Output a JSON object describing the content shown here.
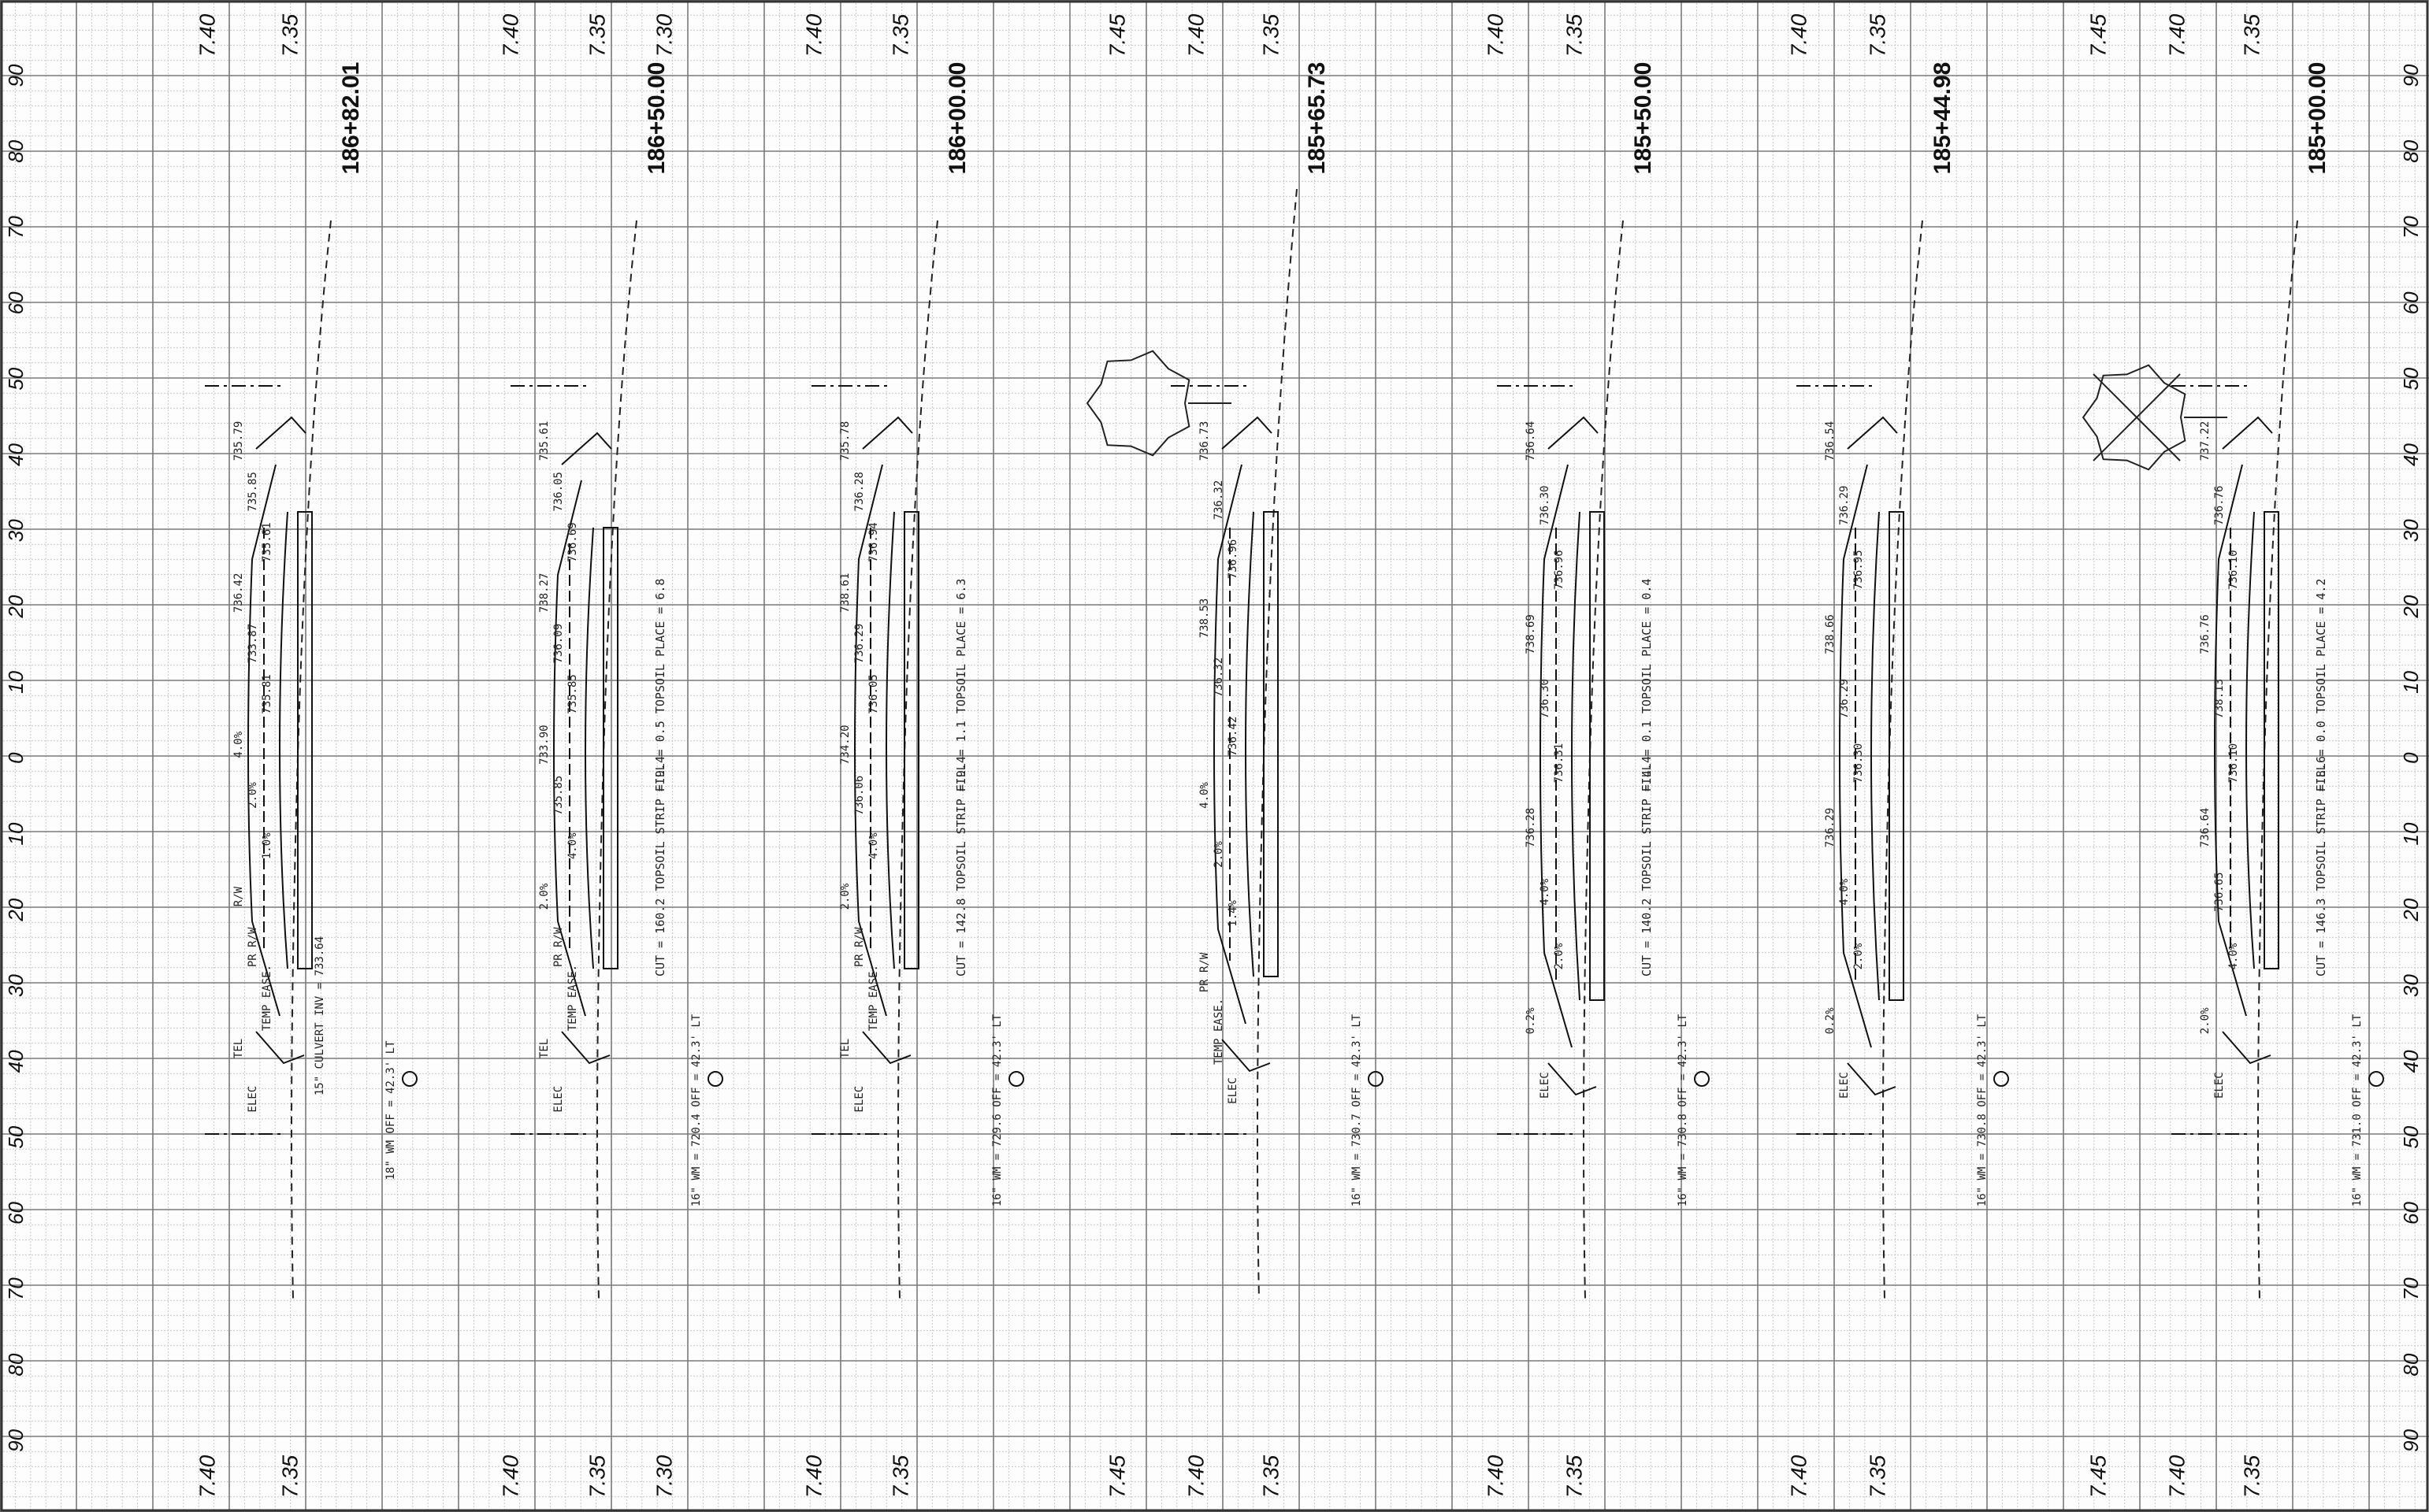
{
  "sheet": {
    "offset_labels": [
      "90",
      "80",
      "70",
      "60",
      "50",
      "40",
      "30",
      "20",
      "10",
      "0",
      "10",
      "20",
      "30",
      "40",
      "50",
      "60",
      "70",
      "80",
      "90"
    ],
    "colors": {
      "paper": "#fdfdfd",
      "grid_minor": "#c8c8c8",
      "grid_major": "#7a7a7a",
      "ink": "#111111"
    }
  },
  "sections": [
    {
      "station": "186+82.01",
      "elev_top": [
        "7.40",
        "7.35"
      ],
      "elev_bottom": [
        "7.40",
        "7.35"
      ],
      "notes": {
        "fill": "",
        "cut": ""
      },
      "callouts": [
        "735.79",
        "735.85",
        "735.61",
        "736.42",
        "733.87",
        "735.81",
        "4.0%",
        "2.0%",
        "1.0%",
        "R/W",
        "PR R/W",
        "TEMP EASE.",
        "TEL",
        "ELEC"
      ],
      "structure_note": "15\" CULVERT INV = 733.64",
      "drain_note": "18\" WM OFF = 42.3' LT"
    },
    {
      "station": "186+50.00",
      "elev_top": [
        "7.40",
        "7.35",
        "7.30"
      ],
      "elev_bottom": [
        "7.40",
        "7.35",
        "7.30"
      ],
      "notes": {
        "fill": "FILL = 0.5   TOPSOIL PLACE = 6.8",
        "cut": "CUT = 160.2   TOPSOIL STRIP = 9.4"
      },
      "callouts": [
        "735.61",
        "736.05",
        "736.69",
        "738.27",
        "736.09",
        "735.85",
        "733.90",
        "735.85",
        "4.0%",
        "2.0%",
        "PR R/W",
        "TEMP EASE.",
        "TEL",
        "ELEC"
      ],
      "structure_note": "",
      "drain_note": "16\" WM = 720.4 OFF = 42.3' LT"
    },
    {
      "station": "186+00.00",
      "elev_top": [
        "7.40",
        "7.35"
      ],
      "elev_bottom": [
        "7.40",
        "7.35"
      ],
      "notes": {
        "fill": "FILL = 1.1   TOPSOIL PLACE = 6.3",
        "cut": "CUT = 142.8   TOPSOIL STRIP = 9.4"
      },
      "callouts": [
        "735.78",
        "736.28",
        "736.94",
        "738.61",
        "736.29",
        "736.05",
        "734.20",
        "736.06",
        "4.0%",
        "2.0%",
        "PR R/W",
        "TEMP EASE.",
        "TEL",
        "ELEC"
      ],
      "structure_note": "",
      "drain_note": "16\" WM = 729.6 OFF = 42.3' LT"
    },
    {
      "station": "185+65.73",
      "elev_top": [
        "7.45",
        "7.40",
        "7.35"
      ],
      "elev_bottom": [
        "7.45",
        "7.40",
        "7.35"
      ],
      "notes": {
        "fill": "",
        "cut": ""
      },
      "callouts": [
        "736.73",
        "736.32",
        "736.96",
        "738.53",
        "736.32",
        "736.42",
        "4.0%",
        "2.0%",
        "1.4%",
        "PR R/W",
        "TEMP EASE.",
        "ELEC"
      ],
      "structure_note": "",
      "drain_note": "16\" WM = 730.7 OFF = 42.3' LT"
    },
    {
      "station": "185+50.00",
      "elev_top": [
        "7.40",
        "7.35"
      ],
      "elev_bottom": [
        "7.40",
        "7.35"
      ],
      "notes": {
        "fill": "FILL = 0.1   TOPSOIL PLACE = 0.4",
        "cut": "CUT = 140.2   TOPSOIL STRIP = 4.4"
      },
      "callouts": [
        "736.64",
        "736.30",
        "736.96",
        "738.69",
        "736.30",
        "736.31",
        "736.28",
        "4.0%",
        "2.0%",
        "0.2%",
        "ELEC"
      ],
      "structure_note": "",
      "drain_note": "16\" WM = 730.8 OFF = 42.3' LT"
    },
    {
      "station": "185+44.98",
      "elev_top": [
        "7.40",
        "7.35"
      ],
      "elev_bottom": [
        "7.40",
        "7.35"
      ],
      "notes": {
        "fill": "",
        "cut": ""
      },
      "callouts": [
        "736.54",
        "736.29",
        "736.95",
        "738.66",
        "736.29",
        "736.30",
        "736.29",
        "4.0%",
        "2.0%",
        "0.2%",
        "ELEC"
      ],
      "structure_note": "",
      "drain_note": "16\" WM = 730.8 OFF = 42.3' LT"
    },
    {
      "station": "185+00.00",
      "elev_top": [
        "7.45",
        "7.40",
        "7.35"
      ],
      "elev_bottom": [
        "7.45",
        "7.40",
        "7.35"
      ],
      "notes": {
        "fill": "FILL = 0.0   TOPSOIL PLACE = 4.2",
        "cut": "CUT = 146.3   TOPSOIL STRIP = 8.6"
      },
      "callouts": [
        "737.22",
        "736.76",
        "736.10",
        "736.76",
        "738.13",
        "736.10",
        "736.64",
        "736.65",
        "4.0%",
        "2.0%",
        "ELEC"
      ],
      "structure_note": "",
      "drain_note": "16\" WM = 731.0 OFF = 42.3' LT"
    }
  ]
}
